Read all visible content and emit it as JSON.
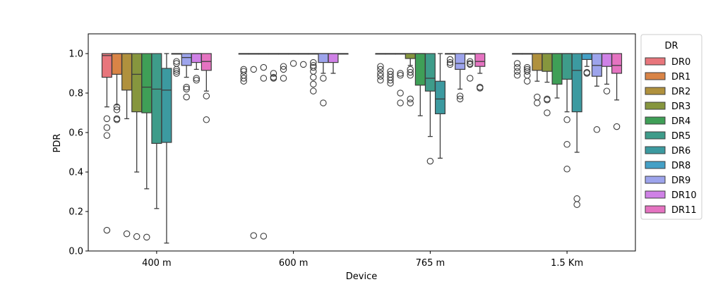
{
  "chart_data": {
    "type": "box",
    "xlabel": "Device",
    "ylabel": "PDR",
    "ylim": [
      0.0,
      1.1
    ],
    "yticks": [
      "0.0",
      "0.2",
      "0.4",
      "0.6",
      "0.8",
      "1.0"
    ],
    "categories": [
      "400 m",
      "600 m",
      "765 m",
      "1.5 Km"
    ],
    "legend": {
      "title": "DR",
      "position": "right-outside"
    },
    "series": [
      {
        "name": "DR0",
        "color": "#e8767c"
      },
      {
        "name": "DR1",
        "color": "#d98446"
      },
      {
        "name": "DR2",
        "color": "#b0913d"
      },
      {
        "name": "DR3",
        "color": "#86963e"
      },
      {
        "name": "DR4",
        "color": "#3f9f57"
      },
      {
        "name": "DR5",
        "color": "#3e9c8a"
      },
      {
        "name": "DR6",
        "color": "#3c9aa0"
      },
      {
        "name": "DR8",
        "color": "#44a0c6"
      },
      {
        "name": "DR9",
        "color": "#9da4ec"
      },
      {
        "name": "DR10",
        "color": "#cf81e6"
      },
      {
        "name": "DR11",
        "color": "#e573c1"
      }
    ],
    "boxes": [
      [
        {
          "q1": 0.88,
          "med": 0.99,
          "q3": 1.0,
          "wlo": 0.73,
          "whi": 1.0,
          "fliers": [
            0.67,
            0.625,
            0.585,
            0.105
          ]
        },
        {
          "q1": 0.895,
          "med": 1.0,
          "q3": 1.0,
          "wlo": 0.74,
          "whi": 1.0,
          "fliers": [
            0.73,
            0.715,
            0.67,
            0.665
          ]
        },
        {
          "q1": 0.815,
          "med": 1.0,
          "q3": 1.0,
          "wlo": 0.67,
          "whi": 1.0,
          "fliers": [
            0.087
          ]
        },
        {
          "q1": 0.705,
          "med": 0.895,
          "q3": 1.0,
          "wlo": 0.4,
          "whi": 1.0,
          "fliers": [
            0.073
          ]
        },
        {
          "q1": 0.7,
          "med": 0.83,
          "q3": 1.0,
          "wlo": 0.315,
          "whi": 1.0,
          "fliers": [
            0.07
          ]
        },
        {
          "q1": 0.545,
          "med": 0.82,
          "q3": 1.0,
          "wlo": 0.215,
          "whi": 1.0,
          "fliers": []
        },
        {
          "q1": 0.55,
          "med": 0.815,
          "q3": 0.925,
          "wlo": 0.04,
          "whi": 1.0,
          "fliers": []
        },
        {
          "q1": 1.0,
          "med": 1.0,
          "q3": 1.0,
          "wlo": 1.0,
          "whi": 1.0,
          "fliers": [
            0.96,
            0.95,
            0.92,
            0.91,
            0.9
          ]
        },
        {
          "q1": 0.94,
          "med": 0.98,
          "q3": 1.0,
          "wlo": 0.88,
          "whi": 1.0,
          "fliers": [
            0.83,
            0.82,
            0.78
          ]
        },
        {
          "q1": 0.955,
          "med": 1.0,
          "q3": 1.0,
          "wlo": 0.92,
          "whi": 1.0,
          "fliers": [
            0.875,
            0.865
          ]
        },
        {
          "q1": 0.915,
          "med": 0.96,
          "q3": 1.0,
          "wlo": 0.81,
          "whi": 1.0,
          "fliers": [
            0.785,
            0.665
          ]
        }
      ],
      [
        {
          "q1": 1.0,
          "med": 1.0,
          "q3": 1.0,
          "wlo": 1.0,
          "whi": 1.0,
          "fliers": [
            0.92,
            0.91,
            0.89,
            0.875,
            0.86
          ]
        },
        {
          "q1": 1.0,
          "med": 1.0,
          "q3": 1.0,
          "wlo": 1.0,
          "whi": 1.0,
          "fliers": [
            0.92,
            0.078
          ]
        },
        {
          "q1": 1.0,
          "med": 1.0,
          "q3": 1.0,
          "wlo": 1.0,
          "whi": 1.0,
          "fliers": [
            0.93,
            0.875,
            0.075
          ]
        },
        {
          "q1": 1.0,
          "med": 1.0,
          "q3": 1.0,
          "wlo": 1.0,
          "whi": 1.0,
          "fliers": [
            0.9,
            0.88,
            0.875
          ]
        },
        {
          "q1": 1.0,
          "med": 1.0,
          "q3": 1.0,
          "wlo": 1.0,
          "whi": 1.0,
          "fliers": [
            0.935,
            0.92,
            0.875
          ]
        },
        {
          "q1": 1.0,
          "med": 1.0,
          "q3": 1.0,
          "wlo": 1.0,
          "whi": 1.0,
          "fliers": [
            0.95
          ]
        },
        {
          "q1": 1.0,
          "med": 1.0,
          "q3": 1.0,
          "wlo": 1.0,
          "whi": 1.0,
          "fliers": [
            0.945
          ]
        },
        {
          "q1": 1.0,
          "med": 1.0,
          "q3": 1.0,
          "wlo": 1.0,
          "whi": 1.0,
          "fliers": [
            0.955,
            0.94,
            0.93,
            0.91,
            0.88,
            0.845,
            0.81
          ]
        },
        {
          "q1": 0.955,
          "med": 1.0,
          "q3": 1.0,
          "wlo": 0.9,
          "whi": 1.0,
          "fliers": [
            0.875,
            0.75
          ]
        },
        {
          "q1": 0.955,
          "med": 1.0,
          "q3": 1.0,
          "wlo": 0.9,
          "whi": 1.0,
          "fliers": []
        },
        {
          "q1": 1.0,
          "med": 1.0,
          "q3": 1.0,
          "wlo": 1.0,
          "whi": 1.0,
          "fliers": []
        }
      ],
      [
        {
          "q1": 1.0,
          "med": 1.0,
          "q3": 1.0,
          "wlo": 1.0,
          "whi": 1.0,
          "fliers": [
            0.935,
            0.92,
            0.9,
            0.885,
            0.865
          ]
        },
        {
          "q1": 1.0,
          "med": 1.0,
          "q3": 1.0,
          "wlo": 1.0,
          "whi": 1.0,
          "fliers": [
            0.91,
            0.895,
            0.88,
            0.865,
            0.85
          ]
        },
        {
          "q1": 1.0,
          "med": 1.0,
          "q3": 1.0,
          "wlo": 1.0,
          "whi": 1.0,
          "fliers": [
            0.9,
            0.89,
            0.8,
            0.75
          ]
        },
        {
          "q1": 0.975,
          "med": 1.0,
          "q3": 1.0,
          "wlo": 0.94,
          "whi": 1.0,
          "fliers": [
            0.92,
            0.905,
            0.89,
            0.77,
            0.75
          ]
        },
        {
          "q1": 0.84,
          "med": 1.0,
          "q3": 1.0,
          "wlo": 0.685,
          "whi": 1.0,
          "fliers": []
        },
        {
          "q1": 0.81,
          "med": 0.875,
          "q3": 1.0,
          "wlo": 0.58,
          "whi": 1.0,
          "fliers": [
            0.455
          ]
        },
        {
          "q1": 0.695,
          "med": 0.77,
          "q3": 0.86,
          "wlo": 0.47,
          "whi": 1.0,
          "fliers": []
        },
        {
          "q1": 1.0,
          "med": 1.0,
          "q3": 1.0,
          "wlo": 1.0,
          "whi": 1.0,
          "fliers": [
            0.97,
            0.955,
            0.945
          ]
        },
        {
          "q1": 0.92,
          "med": 0.95,
          "q3": 1.0,
          "wlo": 0.82,
          "whi": 1.0,
          "fliers": [
            0.785,
            0.77
          ]
        },
        {
          "q1": 1.0,
          "med": 1.0,
          "q3": 1.0,
          "wlo": 1.0,
          "whi": 1.0,
          "fliers": [
            0.96,
            0.95,
            0.945,
            0.875
          ]
        },
        {
          "q1": 0.935,
          "med": 0.96,
          "q3": 1.0,
          "wlo": 0.9,
          "whi": 1.0,
          "fliers": [
            0.83,
            0.825
          ]
        }
      ],
      [
        {
          "q1": 1.0,
          "med": 1.0,
          "q3": 1.0,
          "wlo": 1.0,
          "whi": 1.0,
          "fliers": [
            0.95,
            0.93,
            0.91,
            0.89
          ]
        },
        {
          "q1": 1.0,
          "med": 1.0,
          "q3": 1.0,
          "wlo": 1.0,
          "whi": 1.0,
          "fliers": [
            0.93,
            0.92,
            0.91,
            0.89,
            0.86
          ]
        },
        {
          "q1": 0.915,
          "med": 1.0,
          "q3": 1.0,
          "wlo": 0.86,
          "whi": 1.0,
          "fliers": [
            0.78,
            0.75
          ]
        },
        {
          "q1": 0.91,
          "med": 1.0,
          "q3": 1.0,
          "wlo": 0.855,
          "whi": 1.0,
          "fliers": [
            0.77,
            0.765,
            0.7
          ]
        },
        {
          "q1": 0.845,
          "med": 1.0,
          "q3": 1.0,
          "wlo": 0.775,
          "whi": 1.0,
          "fliers": []
        },
        {
          "q1": 0.87,
          "med": 1.0,
          "q3": 1.0,
          "wlo": 0.705,
          "whi": 1.0,
          "fliers": [
            0.665,
            0.54,
            0.415
          ]
        },
        {
          "q1": 0.705,
          "med": 0.915,
          "q3": 1.0,
          "wlo": 0.5,
          "whi": 1.0,
          "fliers": [
            0.265,
            0.235
          ]
        },
        {
          "q1": 0.97,
          "med": 1.0,
          "q3": 1.0,
          "wlo": 0.935,
          "whi": 1.0,
          "fliers": [
            0.905,
            0.9
          ]
        },
        {
          "q1": 0.885,
          "med": 0.94,
          "q3": 1.0,
          "wlo": 0.835,
          "whi": 1.0,
          "fliers": [
            0.615
          ]
        },
        {
          "q1": 0.935,
          "med": 1.0,
          "q3": 1.0,
          "wlo": 0.845,
          "whi": 1.0,
          "fliers": [
            0.81
          ]
        },
        {
          "q1": 0.9,
          "med": 0.94,
          "q3": 1.0,
          "wlo": 0.765,
          "whi": 1.0,
          "fliers": [
            0.63
          ]
        }
      ]
    ]
  }
}
